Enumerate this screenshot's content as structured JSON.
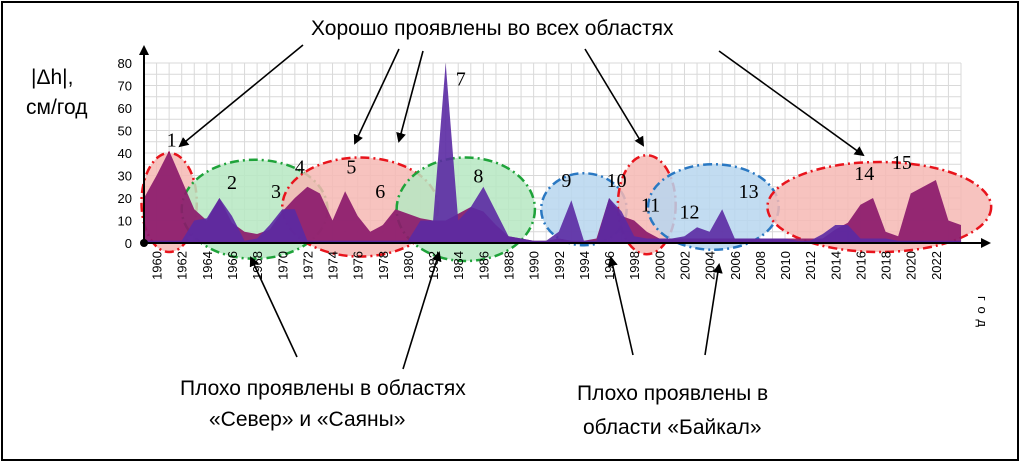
{
  "chart_data": {
    "type": "area",
    "ylabel_lines": [
      "|Δh|,",
      "см/год"
    ],
    "xlabel": "год",
    "ylim": [
      0,
      80
    ],
    "yticks": [
      0,
      10,
      20,
      30,
      40,
      50,
      60,
      70,
      80
    ],
    "xlim": [
      1959,
      2024
    ],
    "xticks": [
      1960,
      1962,
      1964,
      1966,
      1968,
      1970,
      1972,
      1974,
      1976,
      1978,
      1980,
      1982,
      1984,
      1986,
      1988,
      1990,
      1992,
      1994,
      1996,
      1998,
      2000,
      2002,
      2004,
      2006,
      2008,
      2010,
      2012,
      2014,
      2016,
      2018,
      2020,
      2022
    ],
    "grid": true,
    "series": [
      {
        "color": "#8b1a6b",
        "points": [
          [
            1959,
            20
          ],
          [
            1960,
            30
          ],
          [
            1961,
            41
          ],
          [
            1962,
            28
          ],
          [
            1963,
            15
          ],
          [
            1964,
            10
          ],
          [
            1965,
            20
          ],
          [
            1966,
            9
          ],
          [
            1967,
            5
          ],
          [
            1968,
            4
          ],
          [
            1969,
            6
          ],
          [
            1970,
            14
          ],
          [
            1971,
            20
          ],
          [
            1972,
            25
          ],
          [
            1973,
            22
          ],
          [
            1974,
            10
          ],
          [
            1975,
            23
          ],
          [
            1976,
            12
          ],
          [
            1977,
            5
          ],
          [
            1978,
            8
          ],
          [
            1979,
            15
          ],
          [
            1980,
            13
          ],
          [
            1981,
            11
          ],
          [
            1982,
            10
          ],
          [
            1983,
            10
          ],
          [
            1984,
            13
          ],
          [
            1985,
            16
          ],
          [
            1986,
            14
          ],
          [
            1987,
            8
          ],
          [
            1988,
            3
          ],
          [
            1989,
            2
          ],
          [
            1990,
            1
          ],
          [
            1991,
            1
          ],
          [
            1992,
            2
          ],
          [
            1993,
            1
          ],
          [
            1994,
            1
          ],
          [
            1995,
            2
          ],
          [
            1996,
            20
          ],
          [
            1997,
            12
          ],
          [
            1998,
            10
          ],
          [
            1999,
            5
          ],
          [
            2000,
            2
          ],
          [
            2001,
            2
          ],
          [
            2002,
            2
          ],
          [
            2003,
            2
          ],
          [
            2004,
            2
          ],
          [
            2005,
            2
          ],
          [
            2006,
            2
          ],
          [
            2007,
            2
          ],
          [
            2008,
            2
          ],
          [
            2009,
            2
          ],
          [
            2010,
            2
          ],
          [
            2011,
            2
          ],
          [
            2012,
            2
          ],
          [
            2013,
            2
          ],
          [
            2014,
            6
          ],
          [
            2015,
            9
          ],
          [
            2016,
            17
          ],
          [
            2017,
            20
          ],
          [
            2018,
            5
          ],
          [
            2019,
            3
          ],
          [
            2020,
            22
          ],
          [
            2021,
            25
          ],
          [
            2022,
            28
          ],
          [
            2023,
            10
          ],
          [
            2024,
            8
          ]
        ]
      },
      {
        "color": "#5b2aa3",
        "points": [
          [
            1959,
            1
          ],
          [
            1960,
            1
          ],
          [
            1961,
            1
          ],
          [
            1962,
            1
          ],
          [
            1963,
            10
          ],
          [
            1964,
            11
          ],
          [
            1965,
            20
          ],
          [
            1966,
            12
          ],
          [
            1967,
            1
          ],
          [
            1968,
            2
          ],
          [
            1969,
            8
          ],
          [
            1970,
            15
          ],
          [
            1971,
            15
          ],
          [
            1972,
            1
          ],
          [
            1973,
            1
          ],
          [
            1974,
            1
          ],
          [
            1975,
            1
          ],
          [
            1976,
            1
          ],
          [
            1977,
            1
          ],
          [
            1978,
            1
          ],
          [
            1979,
            1
          ],
          [
            1980,
            1
          ],
          [
            1981,
            10
          ],
          [
            1982,
            10
          ],
          [
            1983,
            80
          ],
          [
            1984,
            10
          ],
          [
            1985,
            16
          ],
          [
            1986,
            25
          ],
          [
            1987,
            14
          ],
          [
            1988,
            3
          ],
          [
            1989,
            2
          ],
          [
            1990,
            1
          ],
          [
            1991,
            1
          ],
          [
            1992,
            5
          ],
          [
            1993,
            19
          ],
          [
            1994,
            1
          ],
          [
            1995,
            1
          ],
          [
            1996,
            20
          ],
          [
            1997,
            14
          ],
          [
            1998,
            3
          ],
          [
            1999,
            2
          ],
          [
            2000,
            2
          ],
          [
            2001,
            2
          ],
          [
            2002,
            3
          ],
          [
            2003,
            7
          ],
          [
            2004,
            5
          ],
          [
            2005,
            15
          ],
          [
            2006,
            2
          ],
          [
            2007,
            2
          ],
          [
            2008,
            2
          ],
          [
            2009,
            2
          ],
          [
            2010,
            2
          ],
          [
            2011,
            1
          ],
          [
            2012,
            1
          ],
          [
            2013,
            4
          ],
          [
            2014,
            8
          ],
          [
            2015,
            8
          ],
          [
            2016,
            2
          ],
          [
            2017,
            2
          ],
          [
            2018,
            2
          ],
          [
            2019,
            1
          ],
          [
            2020,
            1
          ],
          [
            2021,
            1
          ],
          [
            2022,
            1
          ],
          [
            2023,
            1
          ],
          [
            2024,
            1
          ]
        ]
      }
    ],
    "regions": [
      {
        "label": "1",
        "cx": 1961,
        "cy": 18,
        "rx": 2.2,
        "ry": 22,
        "type": "good",
        "lx": 1961.2,
        "ly": 43
      },
      {
        "label": "2",
        "cx": 1967.8,
        "cy": 15,
        "rx": 5.8,
        "ry": 22,
        "type": "bad",
        "lx": 1966,
        "ly": 24
      },
      {
        "label": "3",
        "cx": 0,
        "cy": 0,
        "rx": 0,
        "ry": 0,
        "type": "none",
        "lx": 1969.5,
        "ly": 20
      },
      {
        "label": "4",
        "cx": 0,
        "cy": 0,
        "rx": 0,
        "ry": 0,
        "type": "none",
        "lx": 1971.4,
        "ly": 31
      },
      {
        "label": "5",
        "cx": 1976.2,
        "cy": 16,
        "rx": 6.2,
        "ry": 22,
        "type": "good",
        "lx": 1975.5,
        "ly": 31
      },
      {
        "label": "6",
        "cx": 0,
        "cy": 0,
        "rx": 0,
        "ry": 0,
        "type": "none",
        "lx": 1977.8,
        "ly": 20
      },
      {
        "label": "7",
        "cx": 0,
        "cy": 0,
        "rx": 0,
        "ry": 0,
        "type": "none",
        "lx": 1984.2,
        "ly": 70
      },
      {
        "label": "8",
        "cx": 1984.6,
        "cy": 15,
        "rx": 5.5,
        "ry": 23,
        "type": "bad",
        "lx": 1985.6,
        "ly": 27
      },
      {
        "label": "9",
        "cx": 1994,
        "cy": 15,
        "rx": 3.4,
        "ry": 16,
        "type": "baikal",
        "lx": 1992.6,
        "ly": 25
      },
      {
        "label": "10",
        "cx": 0,
        "cy": 0,
        "rx": 0,
        "ry": 0,
        "type": "none",
        "lx": 1996.6,
        "ly": 25
      },
      {
        "label": "11",
        "cx": 1999,
        "cy": 17,
        "rx": 2.3,
        "ry": 22,
        "type": "good",
        "lx": 1999.3,
        "ly": 14
      },
      {
        "label": "12",
        "cx": 2004.3,
        "cy": 16,
        "rx": 5.2,
        "ry": 19,
        "type": "baikal",
        "lx": 2002.4,
        "ly": 11
      },
      {
        "label": "13",
        "cx": 0,
        "cy": 0,
        "rx": 0,
        "ry": 0,
        "type": "none",
        "lx": 2007.1,
        "ly": 20
      },
      {
        "label": "14",
        "cx": 2017.5,
        "cy": 16,
        "rx": 8.9,
        "ry": 20,
        "type": "good",
        "lx": 2016.3,
        "ly": 28
      },
      {
        "label": "15",
        "cx": 0,
        "cy": 0,
        "rx": 0,
        "ry": 0,
        "type": "none",
        "lx": 2019.3,
        "ly": 33
      }
    ]
  },
  "annotations": {
    "top": "Хорошо проявлены во всех областях",
    "bottom_left_line1": "Плохо проявлены в областях",
    "bottom_left_line2": "«Север» и «Саяны»",
    "bottom_right_line1": "Плохо проявлены в",
    "bottom_right_line2": "области «Байкал»"
  },
  "colors": {
    "good_fill": "#f6b8b4",
    "good_stroke": "#e8141c",
    "bad_fill": "#b6e8c2",
    "bad_stroke": "#1fa33a",
    "baikal_fill": "#b7d6ee",
    "baikal_stroke": "#2a78c2",
    "grid": "#d9d9d9",
    "axis": "#000000"
  }
}
